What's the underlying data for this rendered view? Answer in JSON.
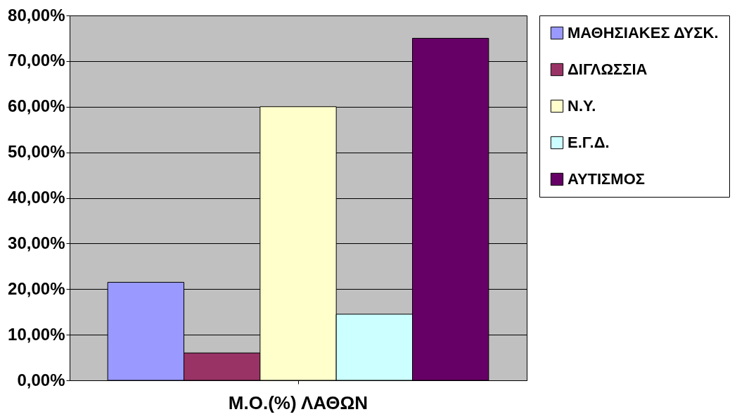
{
  "chart_data": {
    "type": "bar",
    "categories": [
      "Μ.Ο.(%) ΛΑΘΩΝ"
    ],
    "series": [
      {
        "name": "ΜΑΘΗΣΙΑΚΕΣ ΔΥΣΚ.",
        "color": "#9999ff",
        "values": [
          21.5
        ]
      },
      {
        "name": "ΔΙΓΛΩΣΣΙΑ",
        "color": "#993366",
        "values": [
          6
        ]
      },
      {
        "name": "Ν.Υ.",
        "color": "#ffffcc",
        "values": [
          60
        ]
      },
      {
        "name": "Ε.Γ.Δ.",
        "color": "#ccffff",
        "values": [
          14.5
        ]
      },
      {
        "name": "ΑΥΤΙΣΜΟΣ",
        "color": "#660066",
        "values": [
          75
        ]
      }
    ],
    "ylim": [
      0,
      80
    ],
    "yticks": [
      {
        "value": 0,
        "label": "0,00%"
      },
      {
        "value": 10,
        "label": "10,00%"
      },
      {
        "value": 20,
        "label": "20,00%"
      },
      {
        "value": 30,
        "label": "30,00%"
      },
      {
        "value": 40,
        "label": "40,00%"
      },
      {
        "value": 50,
        "label": "50,00%"
      },
      {
        "value": 60,
        "label": "60,00%"
      },
      {
        "value": 70,
        "label": "70,00%"
      },
      {
        "value": 80,
        "label": "80,00%"
      }
    ],
    "grid": "y",
    "legend": "right"
  }
}
